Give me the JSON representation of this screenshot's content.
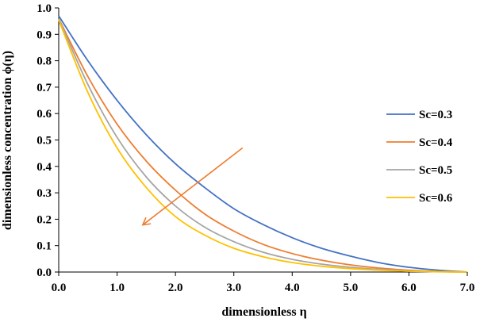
{
  "chart_data": {
    "type": "line",
    "title": "",
    "xlabel": "dimensionless η",
    "ylabel": "dimensionless concentration ϕ(η)",
    "xlim": [
      0,
      7
    ],
    "ylim": [
      0,
      1
    ],
    "x_ticks": [
      "0.0",
      "1.0",
      "2.0",
      "3.0",
      "4.0",
      "5.0",
      "6.0",
      "7.0"
    ],
    "y_ticks": [
      "0.0",
      "0.1",
      "0.2",
      "0.3",
      "0.4",
      "0.5",
      "0.6",
      "0.7",
      "0.8",
      "0.9",
      "1.0"
    ],
    "legend_position": "right",
    "x": [
      0,
      0.5,
      1,
      1.5,
      2,
      2.5,
      3,
      3.5,
      4,
      4.5,
      5,
      5.5,
      6,
      6.5,
      7
    ],
    "series": [
      {
        "name": "Sc=0.3",
        "color": "#4472C4",
        "values": [
          0.97,
          0.8,
          0.65,
          0.52,
          0.41,
          0.32,
          0.24,
          0.18,
          0.13,
          0.09,
          0.06,
          0.035,
          0.018,
          0.007,
          0
        ]
      },
      {
        "name": "Sc=0.4",
        "color": "#ED7D31",
        "values": [
          0.96,
          0.74,
          0.56,
          0.42,
          0.31,
          0.22,
          0.155,
          0.105,
          0.07,
          0.045,
          0.027,
          0.015,
          0.007,
          0.002,
          0
        ]
      },
      {
        "name": "Sc=0.5",
        "color": "#A5A5A5",
        "values": [
          0.96,
          0.71,
          0.51,
          0.36,
          0.25,
          0.17,
          0.115,
          0.075,
          0.048,
          0.03,
          0.018,
          0.01,
          0.005,
          0.0015,
          0
        ]
      },
      {
        "name": "Sc=0.6",
        "color": "#FFC000",
        "values": [
          0.955,
          0.68,
          0.47,
          0.32,
          0.21,
          0.14,
          0.09,
          0.058,
          0.036,
          0.022,
          0.013,
          0.007,
          0.003,
          0.001,
          0
        ]
      }
    ],
    "annotations": [
      {
        "type": "arrow",
        "color": "#ED7D31",
        "from": [
          3.15,
          0.47
        ],
        "to": [
          1.45,
          0.18
        ]
      }
    ]
  }
}
